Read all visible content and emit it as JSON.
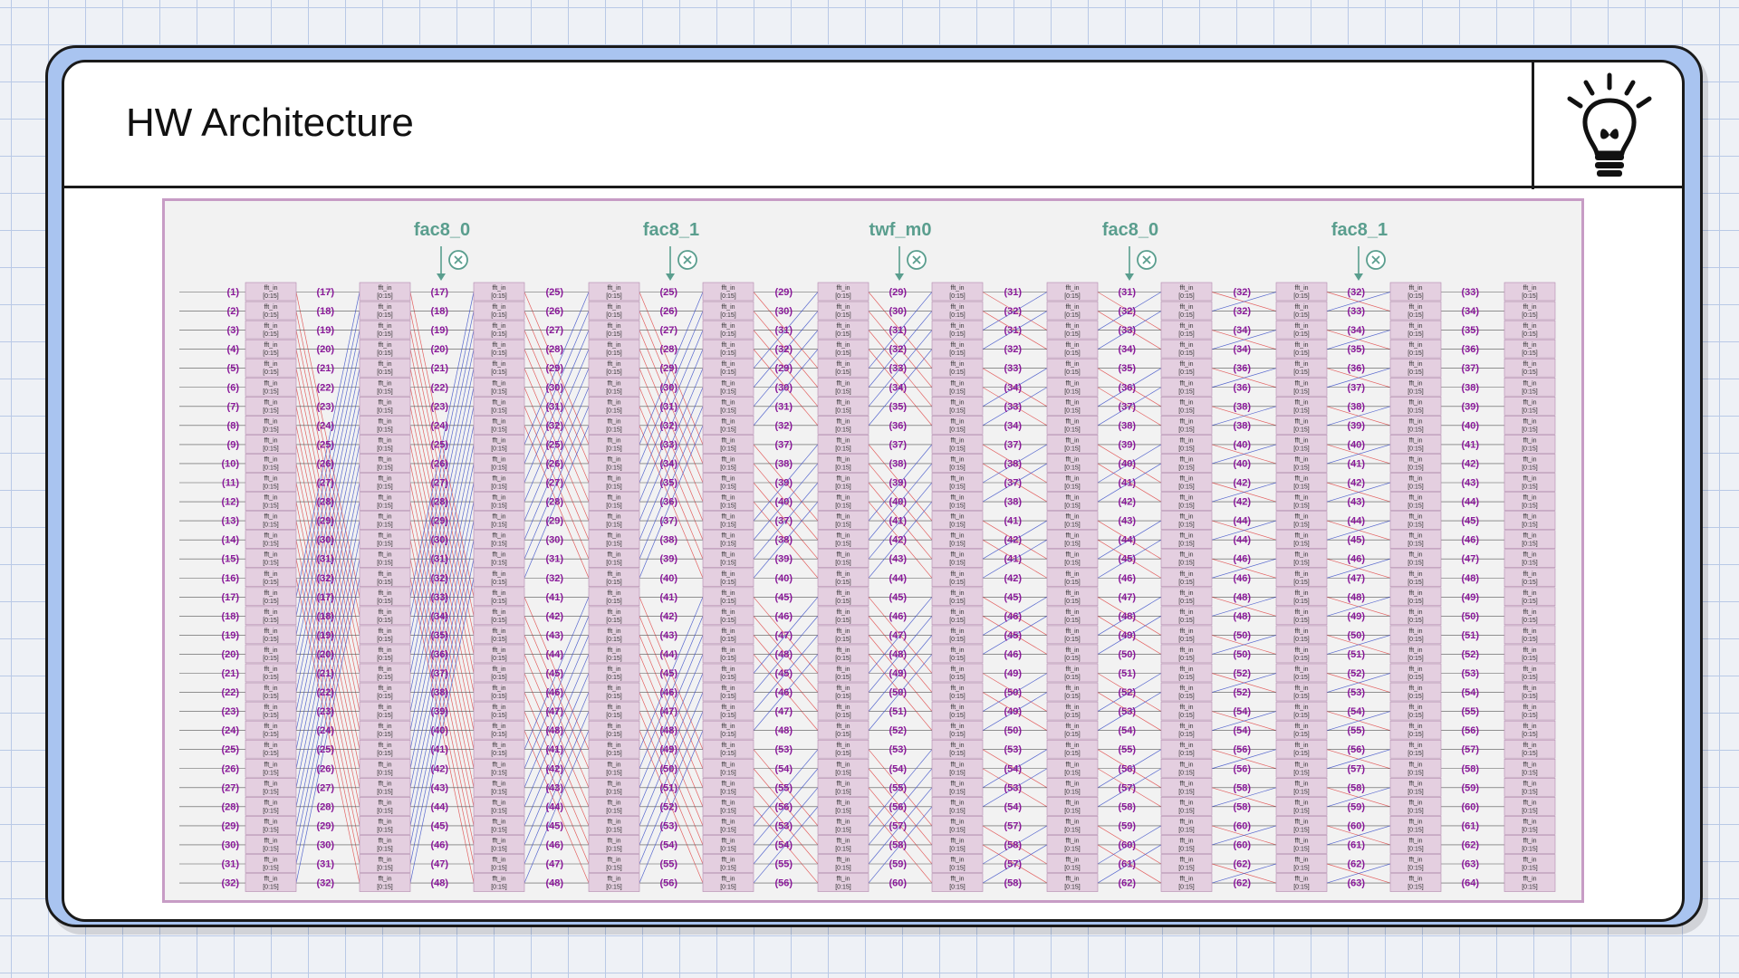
{
  "slide": {
    "title": "HW Architecture",
    "icon": "lightbulb-icon"
  },
  "diagram": {
    "stages": [
      {
        "name": "fac8_0",
        "op_icon": "multiply-circle-icon"
      },
      {
        "name": "fac8_1",
        "op_icon": "multiply-circle-icon"
      },
      {
        "name": "twf_m0",
        "op_icon": "multiply-circle-icon"
      },
      {
        "name": "fac8_0",
        "op_icon": "multiply-circle-icon"
      },
      {
        "name": "fac8_1",
        "op_icon": "multiply-circle-icon"
      }
    ],
    "register_label": "fft_in",
    "register_range": "[0:15]",
    "columns": [
      {
        "labels": [
          "(1)",
          "(2)",
          "(3)",
          "(4)",
          "(5)",
          "(6)",
          "(7)",
          "(8)",
          "(9)",
          "(10)",
          "(11)",
          "(12)",
          "(13)",
          "(14)",
          "(15)",
          "(16)",
          "(17)",
          "(18)",
          "(19)",
          "(20)",
          "(21)",
          "(22)",
          "(23)",
          "(24)",
          "(25)",
          "(26)",
          "(27)",
          "(28)",
          "(29)",
          "(30)",
          "(31)",
          "(32)"
        ]
      },
      {
        "labels": [
          "(17)",
          "(18)",
          "(19)",
          "(20)",
          "(21)",
          "(22)",
          "(23)",
          "(24)",
          "(25)",
          "(26)",
          "(27)",
          "(28)",
          "(29)",
          "(30)",
          "(31)",
          "(32)",
          "(17)",
          "(18)",
          "(19)",
          "(20)",
          "(21)",
          "(22)",
          "(23)",
          "(24)",
          "(25)",
          "(26)",
          "(27)",
          "(28)",
          "(29)",
          "(30)",
          "(31)",
          "(32)"
        ]
      },
      {
        "labels": [
          "(17)",
          "(18)",
          "(19)",
          "(20)",
          "(21)",
          "(22)",
          "(23)",
          "(24)",
          "(25)",
          "(26)",
          "(27)",
          "(28)",
          "(29)",
          "(30)",
          "(31)",
          "(32)",
          "(33)",
          "(34)",
          "(35)",
          "(36)",
          "(37)",
          "(38)",
          "(39)",
          "(40)",
          "(41)",
          "(42)",
          "(43)",
          "(44)",
          "(45)",
          "(46)",
          "(47)",
          "(48)"
        ]
      },
      {
        "labels": [
          "(25)",
          "(26)",
          "(27)",
          "(28)",
          "(29)",
          "(30)",
          "(31)",
          "(32)",
          "(25)",
          "(26)",
          "(27)",
          "(28)",
          "(29)",
          "(30)",
          "(31)",
          "(32)",
          "(41)",
          "(42)",
          "(43)",
          "(44)",
          "(45)",
          "(46)",
          "(47)",
          "(48)",
          "(41)",
          "(42)",
          "(43)",
          "(44)",
          "(45)",
          "(46)",
          "(47)",
          "(48)"
        ]
      },
      {
        "labels": [
          "(25)",
          "(26)",
          "(27)",
          "(28)",
          "(29)",
          "(30)",
          "(31)",
          "(32)",
          "(33)",
          "(34)",
          "(35)",
          "(36)",
          "(37)",
          "(38)",
          "(39)",
          "(40)",
          "(41)",
          "(42)",
          "(43)",
          "(44)",
          "(45)",
          "(46)",
          "(47)",
          "(48)",
          "(49)",
          "(50)",
          "(51)",
          "(52)",
          "(53)",
          "(54)",
          "(55)",
          "(56)"
        ]
      },
      {
        "labels": [
          "(29)",
          "(30)",
          "(31)",
          "(32)",
          "(29)",
          "(30)",
          "(31)",
          "(32)",
          "(37)",
          "(38)",
          "(39)",
          "(40)",
          "(37)",
          "(38)",
          "(39)",
          "(40)",
          "(45)",
          "(46)",
          "(47)",
          "(48)",
          "(45)",
          "(46)",
          "(47)",
          "(48)",
          "(53)",
          "(54)",
          "(55)",
          "(56)",
          "(53)",
          "(54)",
          "(55)",
          "(56)"
        ]
      },
      {
        "labels": [
          "(29)",
          "(30)",
          "(31)",
          "(32)",
          "(33)",
          "(34)",
          "(35)",
          "(36)",
          "(37)",
          "(38)",
          "(39)",
          "(40)",
          "(41)",
          "(42)",
          "(43)",
          "(44)",
          "(45)",
          "(46)",
          "(47)",
          "(48)",
          "(49)",
          "(50)",
          "(51)",
          "(52)",
          "(53)",
          "(54)",
          "(55)",
          "(56)",
          "(57)",
          "(58)",
          "(59)",
          "(60)"
        ]
      },
      {
        "labels": [
          "(31)",
          "(32)",
          "(31)",
          "(32)",
          "(33)",
          "(34)",
          "(33)",
          "(34)",
          "(37)",
          "(38)",
          "(37)",
          "(38)",
          "(41)",
          "(42)",
          "(41)",
          "(42)",
          "(45)",
          "(46)",
          "(45)",
          "(46)",
          "(49)",
          "(50)",
          "(49)",
          "(50)",
          "(53)",
          "(54)",
          "(53)",
          "(54)",
          "(57)",
          "(58)",
          "(57)",
          "(58)"
        ]
      },
      {
        "labels": [
          "(31)",
          "(32)",
          "(33)",
          "(34)",
          "(35)",
          "(36)",
          "(37)",
          "(38)",
          "(39)",
          "(40)",
          "(41)",
          "(42)",
          "(43)",
          "(44)",
          "(45)",
          "(46)",
          "(47)",
          "(48)",
          "(49)",
          "(50)",
          "(51)",
          "(52)",
          "(53)",
          "(54)",
          "(55)",
          "(56)",
          "(57)",
          "(58)",
          "(59)",
          "(60)",
          "(61)",
          "(62)"
        ]
      },
      {
        "labels": [
          "(32)",
          "(32)",
          "(34)",
          "(34)",
          "(36)",
          "(36)",
          "(38)",
          "(38)",
          "(40)",
          "(40)",
          "(42)",
          "(42)",
          "(44)",
          "(44)",
          "(46)",
          "(46)",
          "(48)",
          "(48)",
          "(50)",
          "(50)",
          "(52)",
          "(52)",
          "(54)",
          "(54)",
          "(56)",
          "(56)",
          "(58)",
          "(58)",
          "(60)",
          "(60)",
          "(62)",
          "(62)"
        ]
      },
      {
        "labels": [
          "(32)",
          "(33)",
          "(34)",
          "(35)",
          "(36)",
          "(37)",
          "(38)",
          "(39)",
          "(40)",
          "(41)",
          "(42)",
          "(43)",
          "(44)",
          "(45)",
          "(46)",
          "(47)",
          "(48)",
          "(49)",
          "(50)",
          "(51)",
          "(52)",
          "(53)",
          "(54)",
          "(55)",
          "(56)",
          "(57)",
          "(58)",
          "(59)",
          "(60)",
          "(61)",
          "(62)",
          "(63)"
        ]
      },
      {
        "labels": [
          "(33)",
          "(34)",
          "(35)",
          "(36)",
          "(37)",
          "(38)",
          "(39)",
          "(40)",
          "(41)",
          "(42)",
          "(43)",
          "(44)",
          "(45)",
          "(46)",
          "(47)",
          "(48)",
          "(49)",
          "(50)",
          "(51)",
          "(52)",
          "(53)",
          "(54)",
          "(55)",
          "(56)",
          "(57)",
          "(58)",
          "(59)",
          "(60)",
          "(61)",
          "(62)",
          "(63)",
          "(64)"
        ]
      }
    ],
    "colors": {
      "frame_border": "#c79cc5",
      "register_fill": "#e4cfe0",
      "register_stroke": "#b38aae",
      "label_color": "#8a1a9a",
      "stage_color": "#5a9e8e",
      "wire_red": "#e04848",
      "wire_blue": "#3c4fc8",
      "wire_gray": "#555555"
    }
  }
}
